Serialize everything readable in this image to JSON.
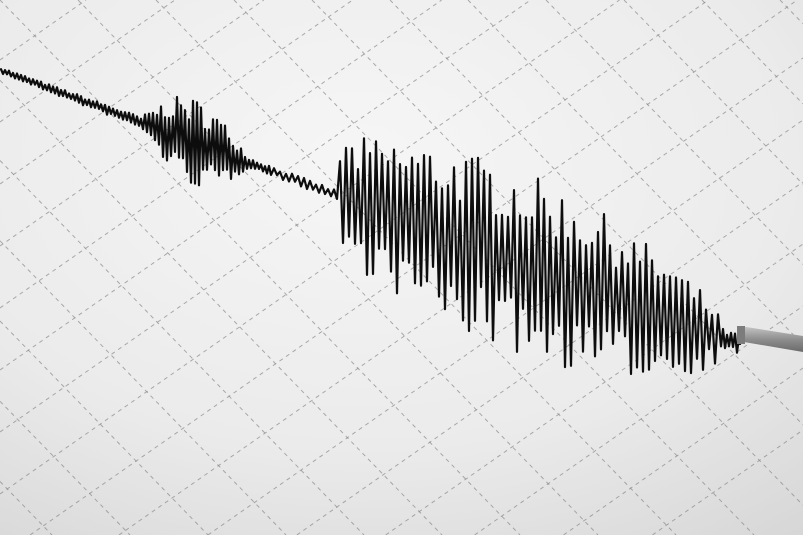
{
  "scene": {
    "subject": "seismograph-recording",
    "colors": {
      "paper_light": "#f4f4f4",
      "paper_dark": "#d9d9d9",
      "grid": "#8a8a8a",
      "ink": "#0d0d0d",
      "stylus": "#9a9a9a"
    }
  }
}
